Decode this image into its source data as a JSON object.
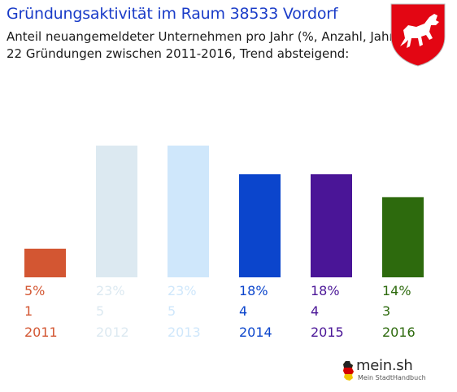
{
  "header": {
    "title": "Gründungsaktivität im Raum 38533 Vordorf",
    "subtitle_line1": "Anteil neuangemeldeter Unternehmen pro Jahr (%, Anzahl, Jahr)",
    "subtitle_line2": "22 Gründungen zwischen 2011-2016, Trend absteigend:"
  },
  "crest": {
    "icon": "niedersachsen-horse-crest-icon",
    "color": "#e30613"
  },
  "logo": {
    "name": "mein.sh",
    "tagline": "Mein StadtHandbuch"
  },
  "chart_data": {
    "type": "bar",
    "categories": [
      "2011",
      "2012",
      "2013",
      "2014",
      "2015",
      "2016"
    ],
    "values": [
      5,
      23,
      23,
      18,
      18,
      14
    ],
    "value_labels": [
      "5%",
      "23%",
      "23%",
      "18%",
      "18%",
      "14%"
    ],
    "counts": [
      1,
      5,
      5,
      4,
      4,
      3
    ],
    "colors": [
      "#d35632",
      "#dce9f1",
      "#cfe7fb",
      "#0b45cc",
      "#4a1597",
      "#2d6a0d"
    ],
    "ylim": [
      0,
      23
    ],
    "grid": false,
    "legend": "none"
  }
}
